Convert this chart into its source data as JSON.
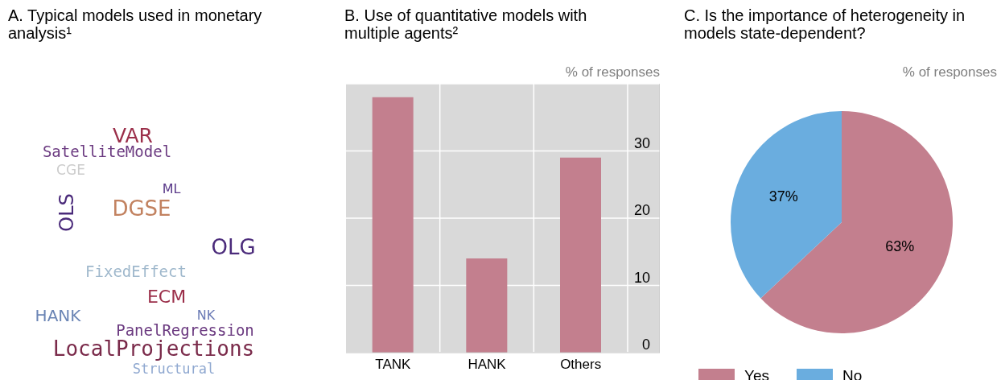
{
  "chart_data": [
    {
      "type": "other",
      "title": "A. Typical models used in monetary analysis¹",
      "annotations": [
        "VAR",
        "SatelliteModel",
        "CGE",
        "ML",
        "DGSE",
        "OLS",
        "OLG",
        "FixedEffect",
        "ECM",
        "HANK",
        "NK",
        "PanelRegression",
        "LocalProjections",
        "Structural"
      ]
    },
    {
      "type": "bar",
      "title": "B. Use of quantitative models with multiple agents²",
      "ylabel": "% of responses",
      "categories": [
        "TANK",
        "HANK",
        "Others"
      ],
      "values": [
        38,
        14,
        29
      ],
      "color": "#c37f8e",
      "ylim": [
        0,
        40
      ],
      "yticks": [
        0,
        10,
        20,
        30
      ],
      "grid": true
    },
    {
      "type": "pie",
      "title": "C. Is the importance of heterogeneity in models state-dependent?",
      "subtitle": "% of responses",
      "categories": [
        "Yes",
        "No"
      ],
      "values": [
        63,
        37
      ],
      "colors": [
        "#c37f8e",
        "#6aaddf"
      ],
      "value_labels": [
        "63%",
        "37%"
      ],
      "legend": "bottom"
    }
  ]
}
